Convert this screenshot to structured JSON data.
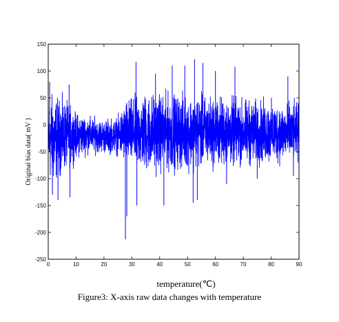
{
  "chart_data": {
    "type": "line",
    "xlabel": "temperature(℃)",
    "ylabel": "Original bias data( mV )",
    "xlim": [
      0,
      90
    ],
    "ylim": [
      -250,
      150
    ],
    "x_ticks": [
      0,
      10,
      20,
      30,
      40,
      50,
      60,
      70,
      80,
      90
    ],
    "y_ticks": [
      150,
      100,
      50,
      0,
      -50,
      -100,
      -150,
      -200,
      -250
    ],
    "grid": false,
    "line_color": "#0000ff",
    "series": [
      {
        "envelope": [
          {
            "x": 0,
            "upper": 60,
            "lower": -110
          },
          {
            "x": 2,
            "upper": 65,
            "lower": -120
          },
          {
            "x": 4,
            "upper": 55,
            "lower": -100
          },
          {
            "x": 6,
            "upper": 50,
            "lower": -90
          },
          {
            "x": 8,
            "upper": 40,
            "lower": -80
          },
          {
            "x": 10,
            "upper": 25,
            "lower": -65
          },
          {
            "x": 15,
            "upper": 18,
            "lower": -55
          },
          {
            "x": 20,
            "upper": 12,
            "lower": -55
          },
          {
            "x": 25,
            "upper": 18,
            "lower": -58
          },
          {
            "x": 28,
            "upper": 50,
            "lower": -80
          },
          {
            "x": 35,
            "upper": 65,
            "lower": -95
          },
          {
            "x": 45,
            "upper": 62,
            "lower": -90
          },
          {
            "x": 55,
            "upper": 60,
            "lower": -85
          },
          {
            "x": 65,
            "upper": 55,
            "lower": -82
          },
          {
            "x": 75,
            "upper": 50,
            "lower": -80
          },
          {
            "x": 85,
            "upper": 45,
            "lower": -75
          },
          {
            "x": 90,
            "upper": 45,
            "lower": -75
          }
        ],
        "spikes": [
          {
            "x": 0.5,
            "y": 80
          },
          {
            "x": 1.5,
            "y": -130
          },
          {
            "x": 3.5,
            "y": -140
          },
          {
            "x": 7.5,
            "y": 75
          },
          {
            "x": 7.8,
            "y": -135
          },
          {
            "x": 27.7,
            "y": -213
          },
          {
            "x": 28.2,
            "y": -170
          },
          {
            "x": 31.5,
            "y": 117
          },
          {
            "x": 31.8,
            "y": -150
          },
          {
            "x": 38.5,
            "y": 95
          },
          {
            "x": 41.5,
            "y": -150
          },
          {
            "x": 44.5,
            "y": 110
          },
          {
            "x": 49.0,
            "y": 110
          },
          {
            "x": 52.5,
            "y": 122
          },
          {
            "x": 53.5,
            "y": -140
          },
          {
            "x": 52.0,
            "y": -145
          },
          {
            "x": 55.5,
            "y": 115
          },
          {
            "x": 60.0,
            "y": 100
          },
          {
            "x": 64.0,
            "y": -110
          },
          {
            "x": 67.0,
            "y": 108
          },
          {
            "x": 75.0,
            "y": -100
          },
          {
            "x": 86.0,
            "y": 90
          },
          {
            "x": 88.0,
            "y": -95
          }
        ]
      }
    ]
  },
  "caption": "Figure3: X-axis raw data changes with temperature"
}
